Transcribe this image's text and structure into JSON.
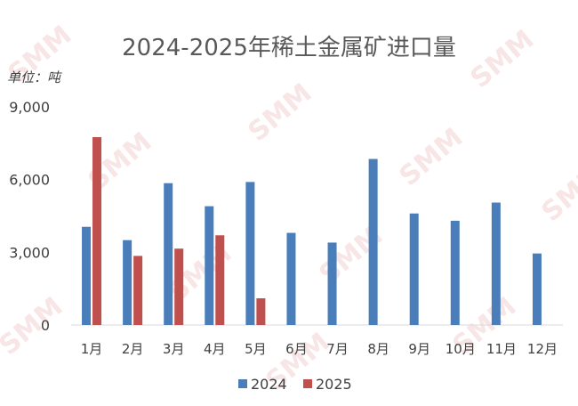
{
  "chart_data": {
    "type": "bar",
    "title": "2024-2025年稀土金属矿进口量",
    "unit_label": "单位：吨",
    "categories": [
      "1月",
      "2月",
      "3月",
      "4月",
      "5月",
      "6月",
      "7月",
      "8月",
      "9月",
      "10月",
      "11月",
      "12月"
    ],
    "series": [
      {
        "name": "2024",
        "color": "#4a7ebb",
        "values": [
          4050,
          3500,
          5850,
          4900,
          5900,
          3800,
          3400,
          6850,
          4600,
          4300,
          5050,
          2950
        ]
      },
      {
        "name": "2025",
        "color": "#c0504d",
        "values": [
          7750,
          2850,
          3150,
          3700,
          1100,
          null,
          null,
          null,
          null,
          null,
          null,
          null
        ]
      }
    ],
    "ylim": [
      0,
      9000
    ],
    "yticks": [
      "0",
      "3,000",
      "6,000",
      "9,000"
    ],
    "ytick_values": [
      0,
      3000,
      6000,
      9000
    ],
    "grid": false,
    "legend_position": "bottom"
  },
  "watermark": "SMM"
}
